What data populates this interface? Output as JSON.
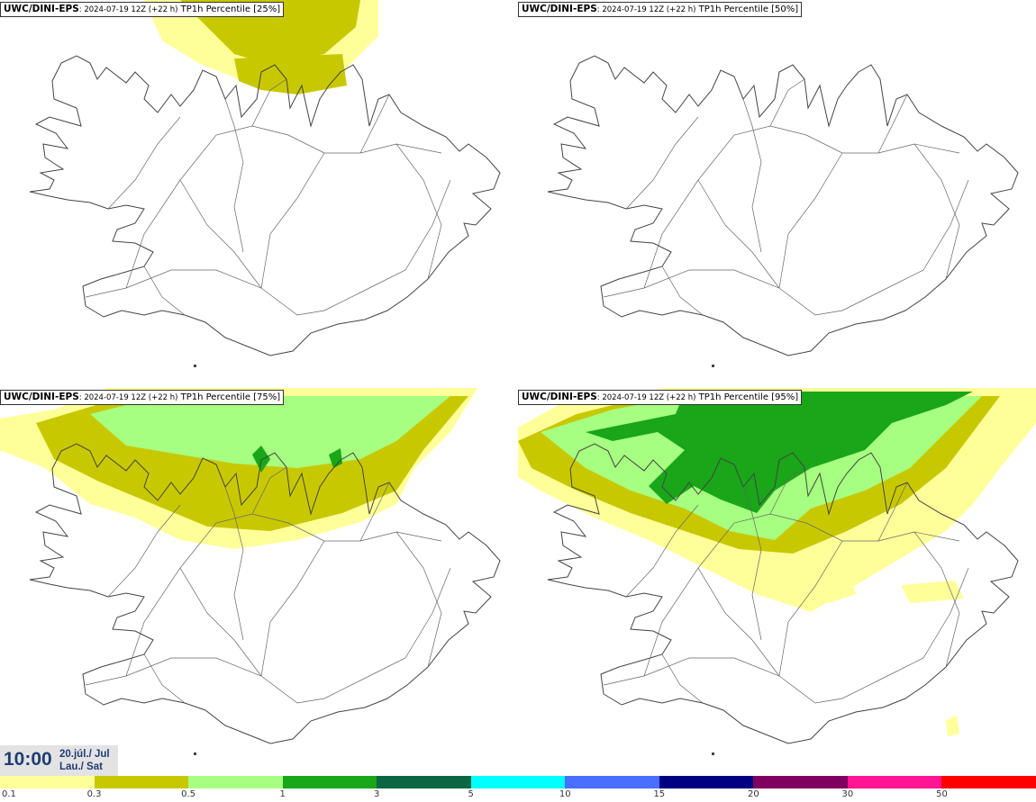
{
  "panels": [
    {
      "model": "UWC/DINI-EPS",
      "run": ": 2024-07-19 12Z (+22 h)",
      "label": " TP1h Percentile [25%]"
    },
    {
      "model": "UWC/DINI-EPS",
      "run": ": 2024-07-19 12Z (+22 h)",
      "label": " TP1h Percentile [50%]"
    },
    {
      "model": "UWC/DINI-EPS",
      "run": ": 2024-07-19 12Z (+22 h)",
      "label": " TP1h Percentile [75%]"
    },
    {
      "model": "UWC/DINI-EPS",
      "run": ": 2024-07-19 12Z (+22 h)",
      "label": " TP1h Percentile [95%]"
    }
  ],
  "time": {
    "clock": "10:00",
    "date_line1": "20.júl./ Jul",
    "date_line2": "Lau./ Sat"
  },
  "legend": {
    "ticks": [
      "0.1",
      "0.3",
      "0.5",
      "1",
      "3",
      "5",
      "10",
      "15",
      "20",
      "30",
      "50"
    ],
    "colors": [
      "#ffff99",
      "#c8c800",
      "#a6ff80",
      "#19a619",
      "#0b6644",
      "#00ffff",
      "#4a6eff",
      "#000080",
      "#800060",
      "#ff1493",
      "#ff0000"
    ]
  },
  "colors": {
    "coast": "#444444",
    "roads": "#666666"
  }
}
